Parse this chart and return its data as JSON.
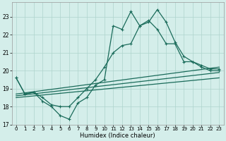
{
  "xlabel": "Humidex (Indice chaleur)",
  "xlim": [
    -0.5,
    23.5
  ],
  "ylim": [
    17,
    23.8
  ],
  "yticks": [
    17,
    18,
    19,
    20,
    21,
    22,
    23
  ],
  "xtick_labels": [
    "0",
    "1",
    "2",
    "3",
    "4",
    "5",
    "6",
    "7",
    "8",
    "9",
    "10",
    "11",
    "12",
    "13",
    "14",
    "15",
    "16",
    "17",
    "18",
    "19",
    "20",
    "21",
    "22",
    "23"
  ],
  "bg_color": "#d4eeea",
  "grid_color": "#aed4cc",
  "line_color": "#1a6b5a",
  "series_main": [
    19.6,
    18.7,
    18.8,
    18.3,
    18.0,
    17.5,
    17.3,
    18.2,
    18.5,
    19.2,
    19.5,
    22.5,
    22.3,
    23.3,
    22.5,
    22.7,
    23.4,
    22.7,
    21.6,
    20.8,
    20.5,
    20.3,
    20.1,
    20.1
  ],
  "series_smooth": [
    19.6,
    18.7,
    18.8,
    18.5,
    18.1,
    18.0,
    18.0,
    18.5,
    19.0,
    19.5,
    20.2,
    21.0,
    21.4,
    21.5,
    22.5,
    22.8,
    22.3,
    21.5,
    21.5,
    20.5,
    20.5,
    20.2,
    20.0,
    20.0
  ],
  "trend1_x": [
    0,
    23
  ],
  "trend1_y": [
    18.5,
    19.6
  ],
  "trend2_x": [
    0,
    23
  ],
  "trend2_y": [
    18.6,
    19.9
  ],
  "trend3_x": [
    0,
    23
  ],
  "trend3_y": [
    18.7,
    20.2
  ],
  "line_width": 0.9,
  "marker_size": 3.5
}
